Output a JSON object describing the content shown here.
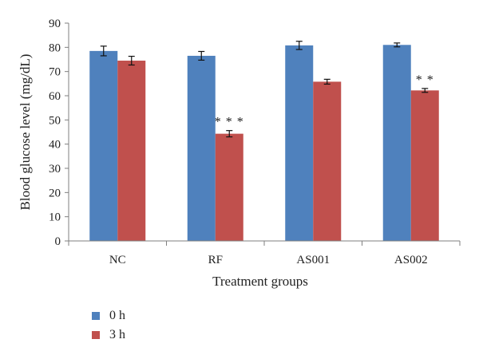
{
  "chart_data": {
    "type": "bar",
    "title": "",
    "xlabel": "Treatment groups",
    "ylabel": "Blood glucose level (mg/dL)",
    "ylim": [
      0,
      90
    ],
    "yticks": [
      0,
      10,
      20,
      30,
      40,
      50,
      60,
      70,
      80,
      90
    ],
    "categories": [
      "NC",
      "RF",
      "AS001",
      "AS002"
    ],
    "series": [
      {
        "name": "0 h",
        "color": "#4f81bd",
        "values": [
          78.5,
          76.5,
          80.8,
          81.0
        ],
        "errors": [
          2.0,
          1.8,
          1.7,
          0.8
        ]
      },
      {
        "name": "3 h",
        "color": "#c0504d",
        "values": [
          74.5,
          44.3,
          65.8,
          62.2
        ],
        "errors": [
          1.8,
          1.3,
          1.0,
          0.8
        ]
      }
    ],
    "annotations": [
      {
        "category": "RF",
        "series": "3 h",
        "text": "* * *"
      },
      {
        "category": "AS002",
        "series": "3 h",
        "text": "* *"
      }
    ],
    "legend_position": "bottom-left",
    "grid": false
  }
}
